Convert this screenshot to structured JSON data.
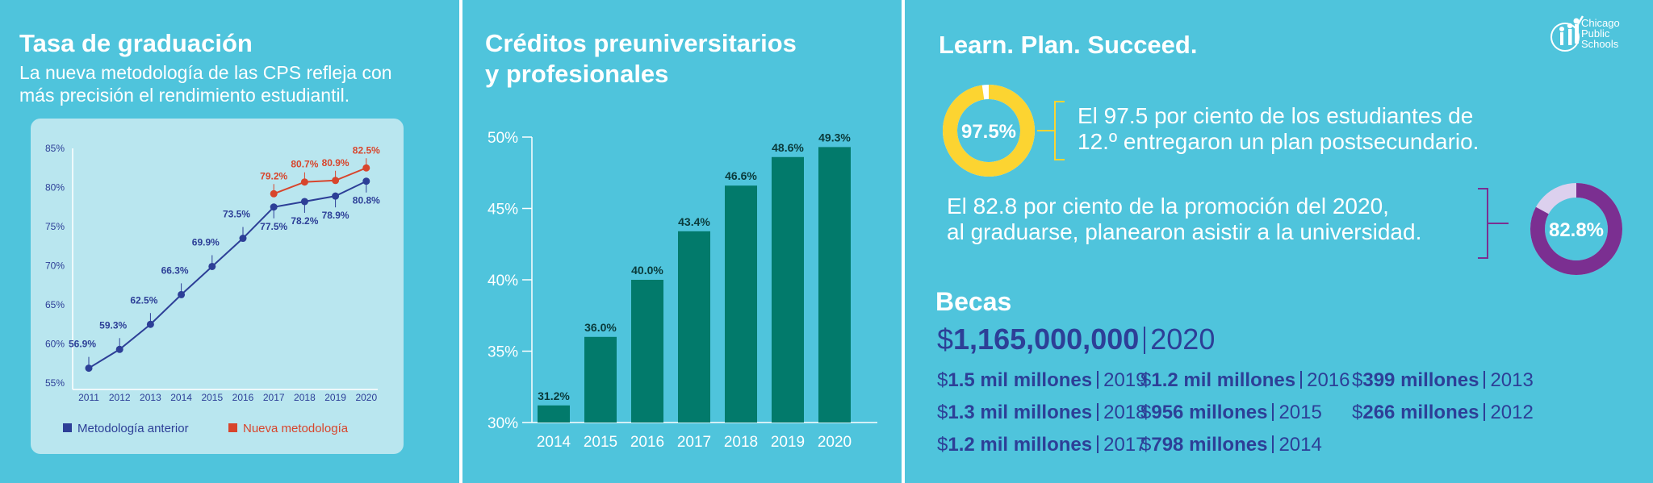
{
  "panel1": {
    "title": "Tasa de graduación",
    "subtitle_line1": "La nueva metodología de las CPS refleja con",
    "subtitle_line2": "más precisión el rendimiento estudiantil.",
    "legend_old": "Metodología anterior",
    "legend_new": "Nueva metodología"
  },
  "panel2": {
    "title_line1": "Créditos preuniversitarios",
    "title_line2": "y profesionales"
  },
  "panel3": {
    "title": "Learn. Plan. Succeed.",
    "logo_line1": "Chicago",
    "logo_line2": "Public",
    "logo_line3": "Schools",
    "donut1_label": "97.5%",
    "donut1_value": 97.5,
    "stat1_line1": "El 97.5 por ciento de los estudiantes de",
    "stat1_line2": "12.º entregaron un plan postsecundario.",
    "donut2_label": "82.8%",
    "donut2_value": 82.8,
    "stat2_line1": "El 82.8 por ciento de la promoción del 2020,",
    "stat2_line2": "al graduarse, planearon asistir a la universidad.",
    "becas_title": "Becas",
    "becas_total_currency": "$",
    "becas_total": "1,165,000,000",
    "becas_total_year": "2020",
    "becas": [
      {
        "amount": "1.5 mil millones",
        "year": "2019"
      },
      {
        "amount": "1.3 mil millones",
        "year": "2018"
      },
      {
        "amount": "1.2 mil millones",
        "year": "2017"
      },
      {
        "amount": "1.2 mil millones",
        "year": "2016"
      },
      {
        "amount": "956 millones",
        "year": "2015"
      },
      {
        "amount": "798 millones",
        "year": "2014"
      },
      {
        "amount": "399 millones",
        "year": "2013"
      },
      {
        "amount": "266 millones",
        "year": "2012"
      }
    ]
  },
  "colors": {
    "background": "#4fc4dc",
    "navy": "#2d3f97",
    "red": "#d8452c",
    "teal_bar": "#027a6b",
    "yellow": "#fcd431",
    "purple": "#7b2f91",
    "light_purple": "#dcd0ee",
    "chart_bg": "#b9e6ef"
  },
  "chart_data": [
    {
      "type": "line",
      "title": "Tasa de graduación",
      "x": [
        "2011",
        "2012",
        "2013",
        "2014",
        "2015",
        "2016",
        "2017",
        "2018",
        "2019",
        "2020"
      ],
      "yticks": [
        "55%",
        "60%",
        "65%",
        "70%",
        "75%",
        "80%",
        "85%"
      ],
      "ylim": [
        55,
        85
      ],
      "series": [
        {
          "name": "Metodología anterior",
          "color": "#2d3f97",
          "values": [
            56.9,
            59.3,
            62.5,
            66.3,
            69.9,
            73.5,
            77.5,
            78.2,
            78.9,
            80.8
          ],
          "labels": [
            "56.9%",
            "59.3%",
            "62.5%",
            "66.3%",
            "69.9%",
            "73.5%",
            "77.5%",
            "78.2%",
            "78.9%",
            "80.8%"
          ]
        },
        {
          "name": "Nueva metodología",
          "color": "#d8452c",
          "x": [
            "2017",
            "2018",
            "2019",
            "2020"
          ],
          "values": [
            79.2,
            80.7,
            80.9,
            82.5
          ],
          "labels": [
            "79.2%",
            "80.7%",
            "80.9%",
            "82.5%"
          ]
        }
      ],
      "legend": "bottom"
    },
    {
      "type": "bar",
      "title": "Créditos preuniversitarios y profesionales",
      "categories": [
        "2014",
        "2015",
        "2016",
        "2017",
        "2018",
        "2019",
        "2020"
      ],
      "values": [
        31.2,
        36.0,
        40.0,
        43.4,
        46.6,
        48.6,
        49.3
      ],
      "labels": [
        "31.2%",
        "36.0%",
        "40.0%",
        "43.4%",
        "46.6%",
        "48.6%",
        "49.3%"
      ],
      "yticks": [
        "30%",
        "35%",
        "40%",
        "45%",
        "50%"
      ],
      "ylim": [
        30,
        50
      ]
    }
  ]
}
